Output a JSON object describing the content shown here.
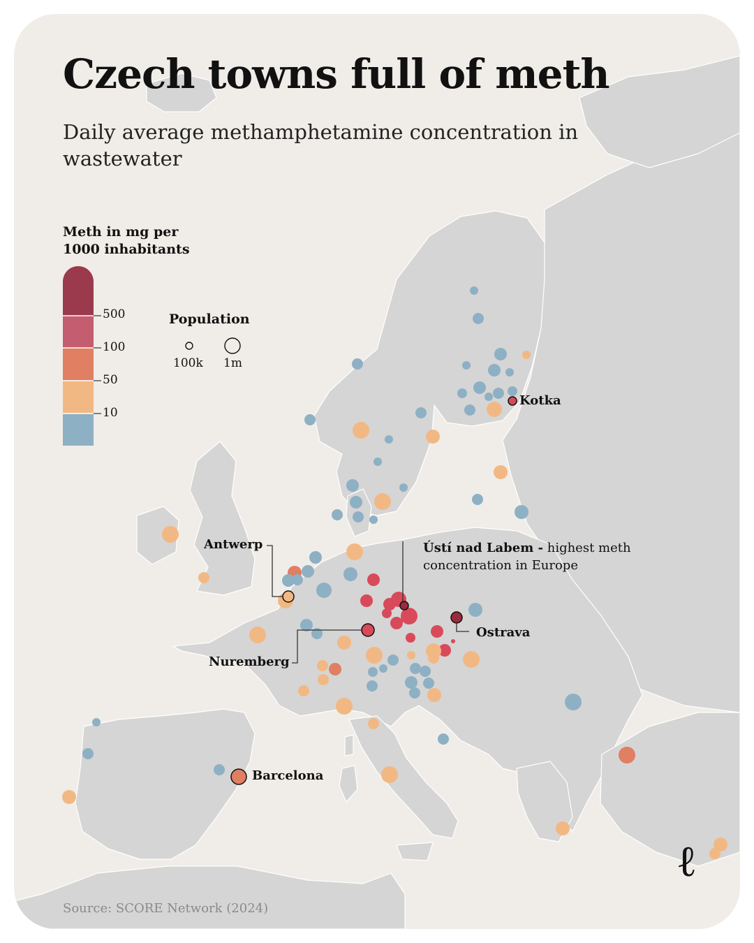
{
  "header": {
    "title": "Czech towns full of meth",
    "subtitle": "Daily average methamphetamine concentration in wastewater"
  },
  "legend": {
    "color_title": "Meth in mg per 1000 inhabitants",
    "color_bins": [
      {
        "label": "",
        "color": "#9b3a4c"
      },
      {
        "label": "500",
        "color": "#c35d6f"
      },
      {
        "label": "100",
        "color": "#e07f62"
      },
      {
        "label": "50",
        "color": "#f2b884"
      },
      {
        "label": "10",
        "color": "#8eb0c4"
      }
    ],
    "size_title": "Population",
    "size_labels": [
      "100k",
      "1m"
    ]
  },
  "labels": {
    "kotka": "Kotka",
    "antwerp": "Antwerp",
    "nuremberg": "Nuremberg",
    "barcelona": "Barcelona",
    "ostrava": "Ostrava",
    "usti_bold": "Ústí nad Labem -",
    "usti_rest": " highest meth concentration in Europe"
  },
  "chart_data": {
    "type": "map",
    "metric": "Meth in mg per 1000 inhabitants",
    "color_scale_thresholds": [
      10,
      50,
      100,
      500
    ],
    "highlighted_cities": [
      {
        "name": "Ústí nad Labem",
        "category": ">500",
        "note": "highest meth concentration in Europe"
      },
      {
        "name": "Ostrava",
        "category": ">500"
      },
      {
        "name": "Kotka",
        "category": "100-500"
      },
      {
        "name": "Nuremberg",
        "category": "100-500"
      },
      {
        "name": "Barcelona",
        "category": "50-100"
      },
      {
        "name": "Antwerp",
        "category": "10-50"
      }
    ]
  },
  "footer": {
    "source": "Source: SCORE Network (2024)",
    "logo": "ℓ"
  }
}
